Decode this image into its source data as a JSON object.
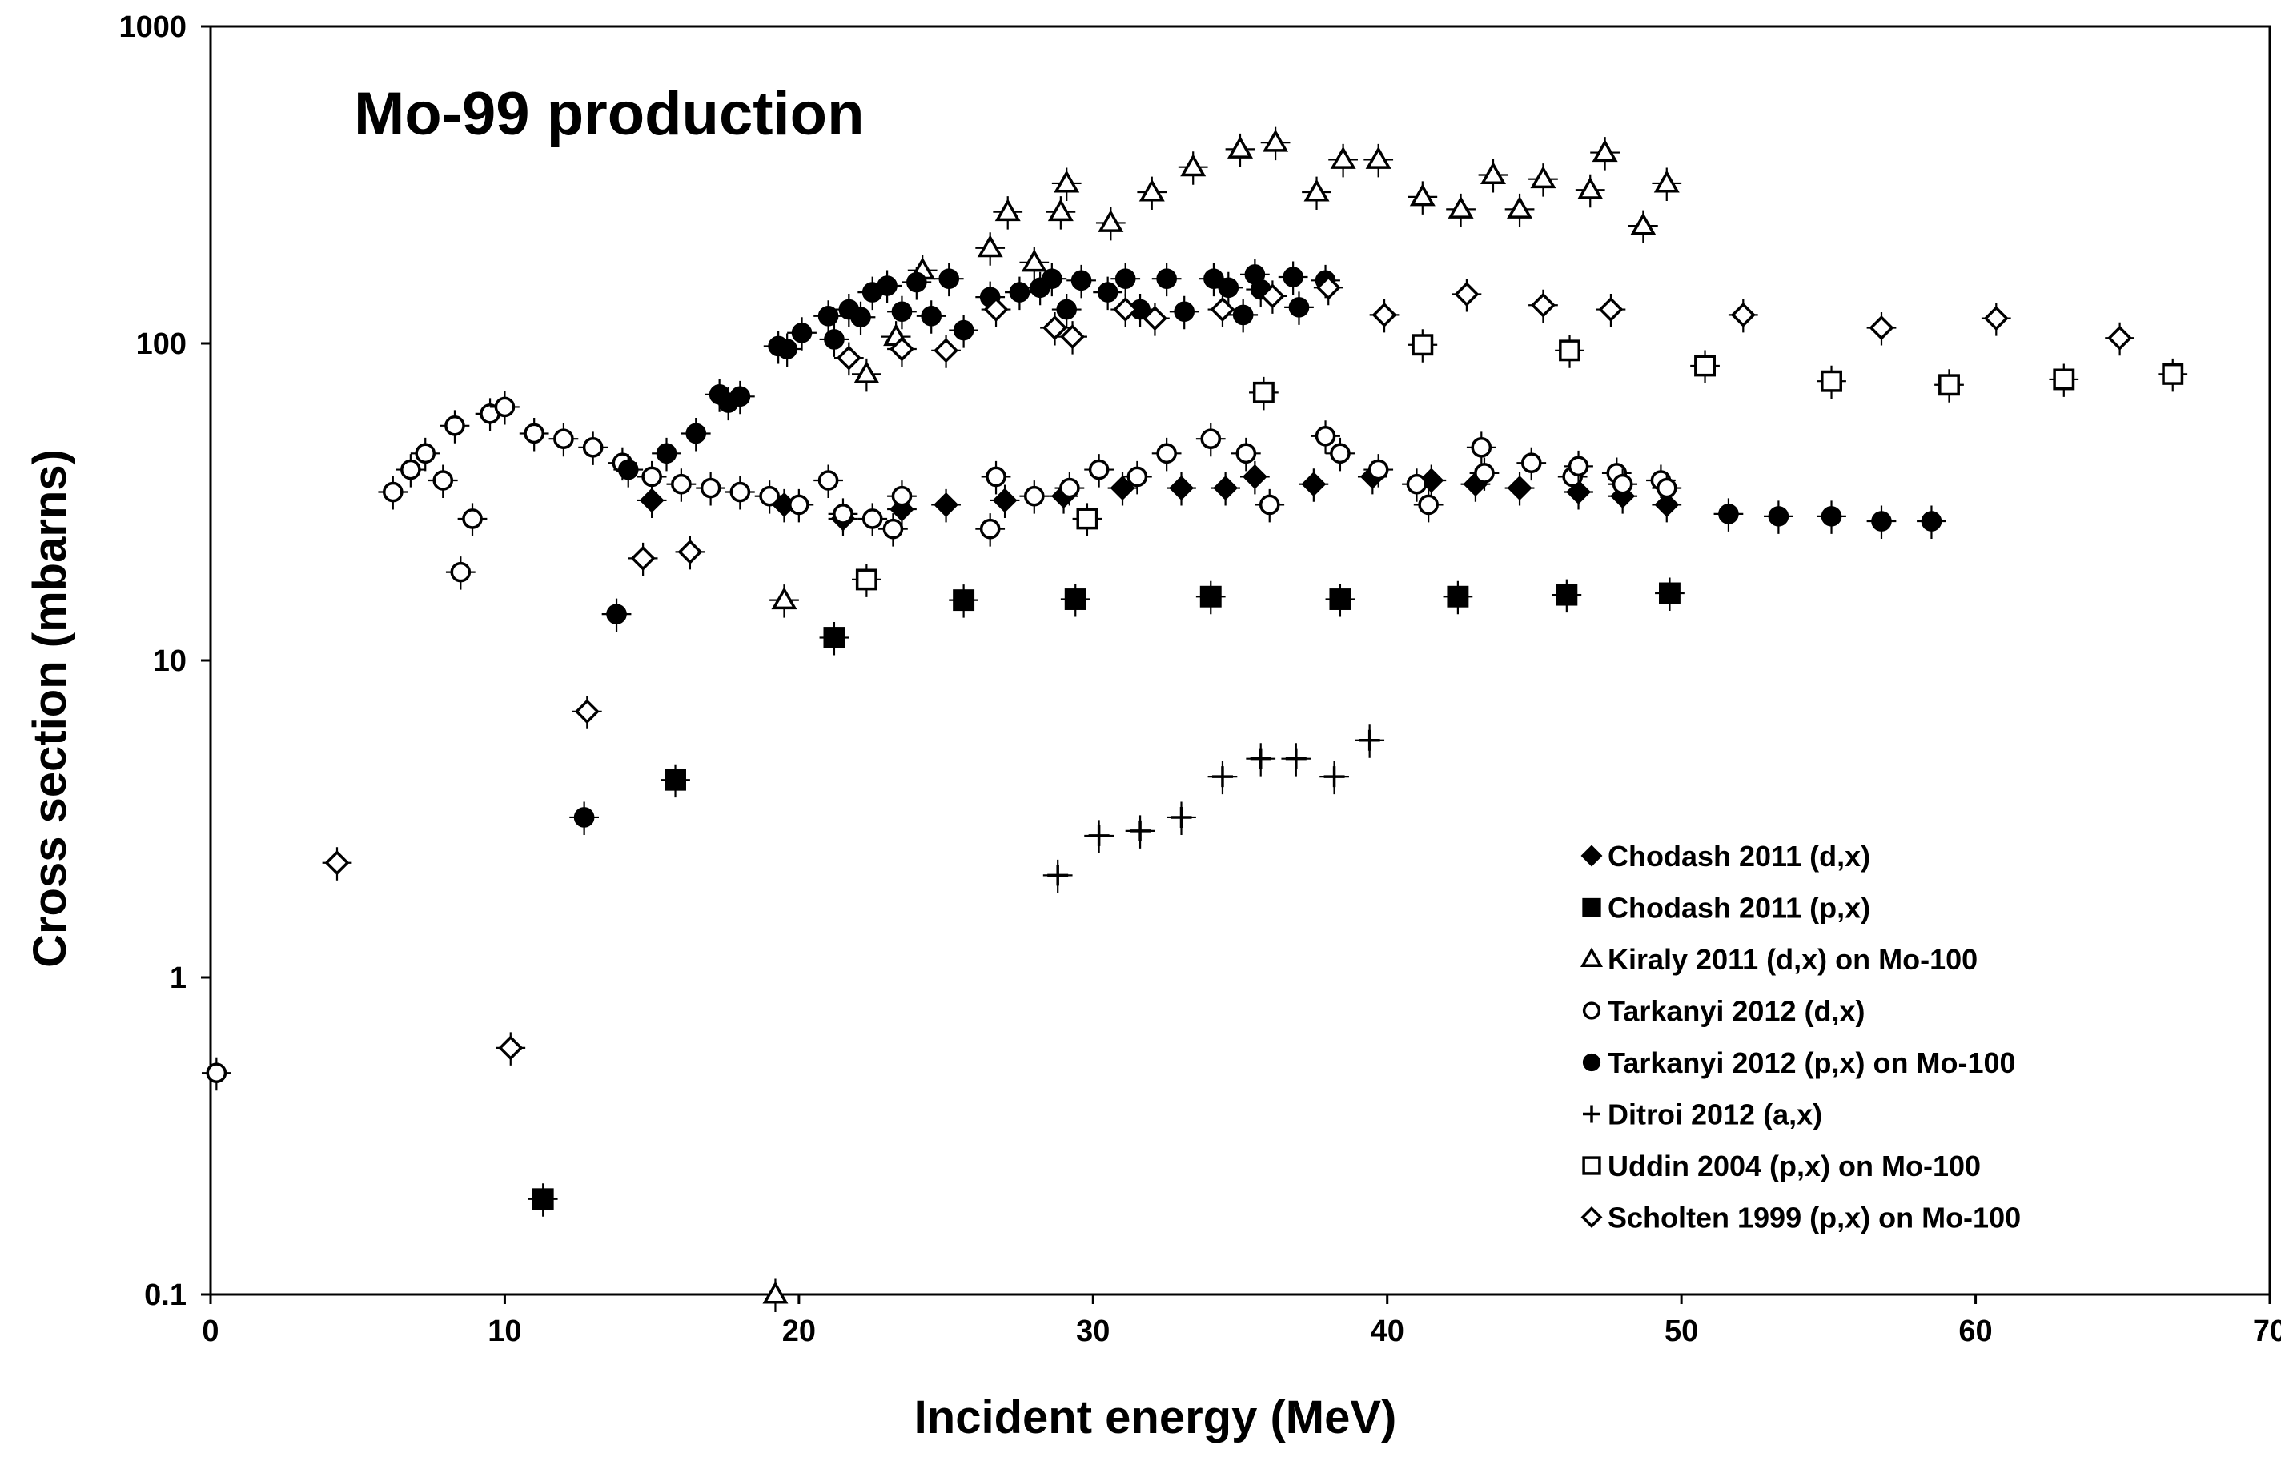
{
  "chart_data": {
    "type": "scatter",
    "title": "Mo-99 production",
    "xlabel": "Incident energy (MeV)",
    "ylabel": "Cross section (mbarns)",
    "xlim": [
      0,
      70
    ],
    "ylim": [
      0.1,
      1000
    ],
    "yscale": "log",
    "x_ticks": [
      "0",
      "10",
      "20",
      "30",
      "40",
      "50",
      "60",
      "70"
    ],
    "y_ticks": [
      "0.1",
      "1",
      "10",
      "100",
      "1000"
    ],
    "legend_position": "lower-right",
    "series": [
      {
        "name": "Chodash 2011 (d,x)",
        "marker": "diamond-filled",
        "points": [
          [
            15.0,
            32
          ],
          [
            19.5,
            31
          ],
          [
            21.5,
            28
          ],
          [
            23.5,
            30
          ],
          [
            25.0,
            31
          ],
          [
            27.0,
            32
          ],
          [
            29.0,
            33
          ],
          [
            31.0,
            35
          ],
          [
            33.0,
            35
          ],
          [
            34.5,
            35
          ],
          [
            35.5,
            38
          ],
          [
            37.5,
            36
          ],
          [
            39.5,
            38
          ],
          [
            41.5,
            37
          ],
          [
            43.0,
            36
          ],
          [
            44.5,
            35
          ],
          [
            46.5,
            34
          ],
          [
            48.0,
            33
          ],
          [
            49.5,
            31
          ]
        ]
      },
      {
        "name": "Chodash 2011 (p,x)",
        "marker": "square-filled",
        "points": [
          [
            11.3,
            0.2
          ],
          [
            15.8,
            4.2
          ],
          [
            21.2,
            11.8
          ],
          [
            25.6,
            15.5
          ],
          [
            29.4,
            15.6
          ],
          [
            34.0,
            15.9
          ],
          [
            38.4,
            15.6
          ],
          [
            42.4,
            15.9
          ],
          [
            46.1,
            16.1
          ],
          [
            49.6,
            16.3
          ]
        ]
      },
      {
        "name": "Kiraly 2011 (d,x) on Mo-100",
        "marker": "triangle-open",
        "points": [
          [
            19.2,
            0.1
          ],
          [
            19.5,
            15.5
          ],
          [
            22.3,
            80
          ],
          [
            23.3,
            105
          ],
          [
            24.2,
            170
          ],
          [
            26.5,
            200
          ],
          [
            27.1,
            260
          ],
          [
            28.0,
            180
          ],
          [
            28.9,
            260
          ],
          [
            29.1,
            320
          ],
          [
            30.6,
            240
          ],
          [
            32.0,
            300
          ],
          [
            33.4,
            360
          ],
          [
            35.0,
            410
          ],
          [
            36.2,
            430
          ],
          [
            37.6,
            300
          ],
          [
            38.5,
            380
          ],
          [
            39.7,
            380
          ],
          [
            41.2,
            290
          ],
          [
            42.5,
            265
          ],
          [
            43.6,
            340
          ],
          [
            44.5,
            265
          ],
          [
            45.3,
            330
          ],
          [
            46.9,
            305
          ],
          [
            47.4,
            400
          ],
          [
            48.7,
            235
          ],
          [
            49.5,
            320
          ]
        ]
      },
      {
        "name": "Tarkanyi 2012 (d,x)",
        "marker": "circle-open",
        "points": [
          [
            0.2,
            0.5
          ],
          [
            6.2,
            34
          ],
          [
            6.8,
            40
          ],
          [
            7.3,
            45
          ],
          [
            7.9,
            37
          ],
          [
            8.3,
            55
          ],
          [
            8.5,
            19
          ],
          [
            8.9,
            28
          ],
          [
            9.5,
            60
          ],
          [
            10.0,
            63
          ],
          [
            11.0,
            52
          ],
          [
            12.0,
            50
          ],
          [
            13.0,
            47
          ],
          [
            14.0,
            42
          ],
          [
            15.0,
            38
          ],
          [
            16.0,
            36
          ],
          [
            17.0,
            35
          ],
          [
            18.0,
            34
          ],
          [
            19.0,
            33
          ],
          [
            20.0,
            31
          ],
          [
            21.0,
            37
          ],
          [
            21.5,
            29
          ],
          [
            22.5,
            28
          ],
          [
            23.2,
            26
          ],
          [
            23.5,
            33
          ],
          [
            26.5,
            26
          ],
          [
            26.7,
            38
          ],
          [
            28.0,
            33
          ],
          [
            29.2,
            35
          ],
          [
            30.2,
            40
          ],
          [
            31.5,
            38
          ],
          [
            32.5,
            45
          ],
          [
            34.0,
            50
          ],
          [
            35.2,
            45
          ],
          [
            36.0,
            31
          ],
          [
            37.9,
            51
          ],
          [
            38.4,
            45
          ],
          [
            39.7,
            40
          ],
          [
            41.0,
            36
          ],
          [
            41.4,
            31
          ],
          [
            43.2,
            47
          ],
          [
            43.3,
            39
          ],
          [
            44.9,
            42
          ],
          [
            46.3,
            38
          ],
          [
            46.5,
            41
          ],
          [
            47.8,
            39
          ],
          [
            48.0,
            36
          ],
          [
            49.3,
            37
          ],
          [
            49.5,
            35
          ]
        ]
      },
      {
        "name": "Tarkanyi 2012 (p,x) on Mo-100",
        "marker": "circle-filled",
        "points": [
          [
            12.7,
            3.2
          ],
          [
            13.8,
            14
          ],
          [
            14.2,
            40
          ],
          [
            15.5,
            45
          ],
          [
            16.5,
            52
          ],
          [
            17.3,
            69
          ],
          [
            17.6,
            65
          ],
          [
            18.0,
            68
          ],
          [
            19.3,
            98
          ],
          [
            19.6,
            96
          ],
          [
            20.1,
            108
          ],
          [
            21.0,
            122
          ],
          [
            21.2,
            103
          ],
          [
            21.7,
            128
          ],
          [
            22.1,
            121
          ],
          [
            22.5,
            145
          ],
          [
            23.0,
            152
          ],
          [
            23.5,
            126
          ],
          [
            24.0,
            156
          ],
          [
            24.5,
            122
          ],
          [
            25.1,
            160
          ],
          [
            25.6,
            110
          ],
          [
            26.5,
            140
          ],
          [
            27.5,
            145
          ],
          [
            28.2,
            150
          ],
          [
            28.6,
            160
          ],
          [
            29.1,
            128
          ],
          [
            29.6,
            158
          ],
          [
            30.5,
            145
          ],
          [
            31.1,
            160
          ],
          [
            31.6,
            128
          ],
          [
            32.5,
            160
          ],
          [
            33.1,
            126
          ],
          [
            34.1,
            160
          ],
          [
            34.6,
            150
          ],
          [
            35.1,
            123
          ],
          [
            35.5,
            165
          ],
          [
            35.7,
            148
          ],
          [
            36.8,
            162
          ],
          [
            37.0,
            130
          ],
          [
            37.9,
            158
          ],
          [
            51.6,
            29
          ],
          [
            53.3,
            28.5
          ],
          [
            55.1,
            28.5
          ],
          [
            56.8,
            27.5
          ],
          [
            58.5,
            27.5
          ]
        ]
      },
      {
        "name": "Ditroi 2012 (a,x)",
        "marker": "plus",
        "points": [
          [
            28.8,
            2.1
          ],
          [
            30.2,
            2.8
          ],
          [
            31.6,
            2.9
          ],
          [
            33.0,
            3.2
          ],
          [
            34.4,
            4.3
          ],
          [
            35.7,
            4.9
          ],
          [
            36.9,
            4.9
          ],
          [
            38.2,
            4.3
          ],
          [
            39.4,
            5.6
          ]
        ]
      },
      {
        "name": "Uddin 2004 (p,x) on Mo-100",
        "marker": "square-open",
        "points": [
          [
            22.3,
            18
          ],
          [
            29.8,
            28
          ],
          [
            35.8,
            70
          ],
          [
            41.2,
            99
          ],
          [
            46.2,
            95
          ],
          [
            50.8,
            85
          ],
          [
            55.1,
            76
          ],
          [
            59.1,
            74
          ],
          [
            63.0,
            77
          ],
          [
            66.7,
            80
          ]
        ]
      },
      {
        "name": "Scholten 1999 (p,x) on Mo-100",
        "marker": "diamond-open",
        "points": [
          [
            4.3,
            2.3
          ],
          [
            10.2,
            0.6
          ],
          [
            12.8,
            6.9
          ],
          [
            14.7,
            21
          ],
          [
            16.3,
            22
          ],
          [
            21.7,
            90
          ],
          [
            23.5,
            96
          ],
          [
            25.0,
            95
          ],
          [
            26.7,
            128
          ],
          [
            28.7,
            112
          ],
          [
            29.3,
            105
          ],
          [
            31.1,
            128
          ],
          [
            32.1,
            120
          ],
          [
            34.4,
            128
          ],
          [
            36.1,
            141
          ],
          [
            38.0,
            150
          ],
          [
            39.9,
            123
          ],
          [
            42.7,
            143
          ],
          [
            45.3,
            132
          ],
          [
            47.6,
            128
          ],
          [
            52.1,
            123
          ],
          [
            56.8,
            112
          ],
          [
            60.7,
            120
          ],
          [
            64.9,
            104
          ]
        ]
      }
    ]
  }
}
